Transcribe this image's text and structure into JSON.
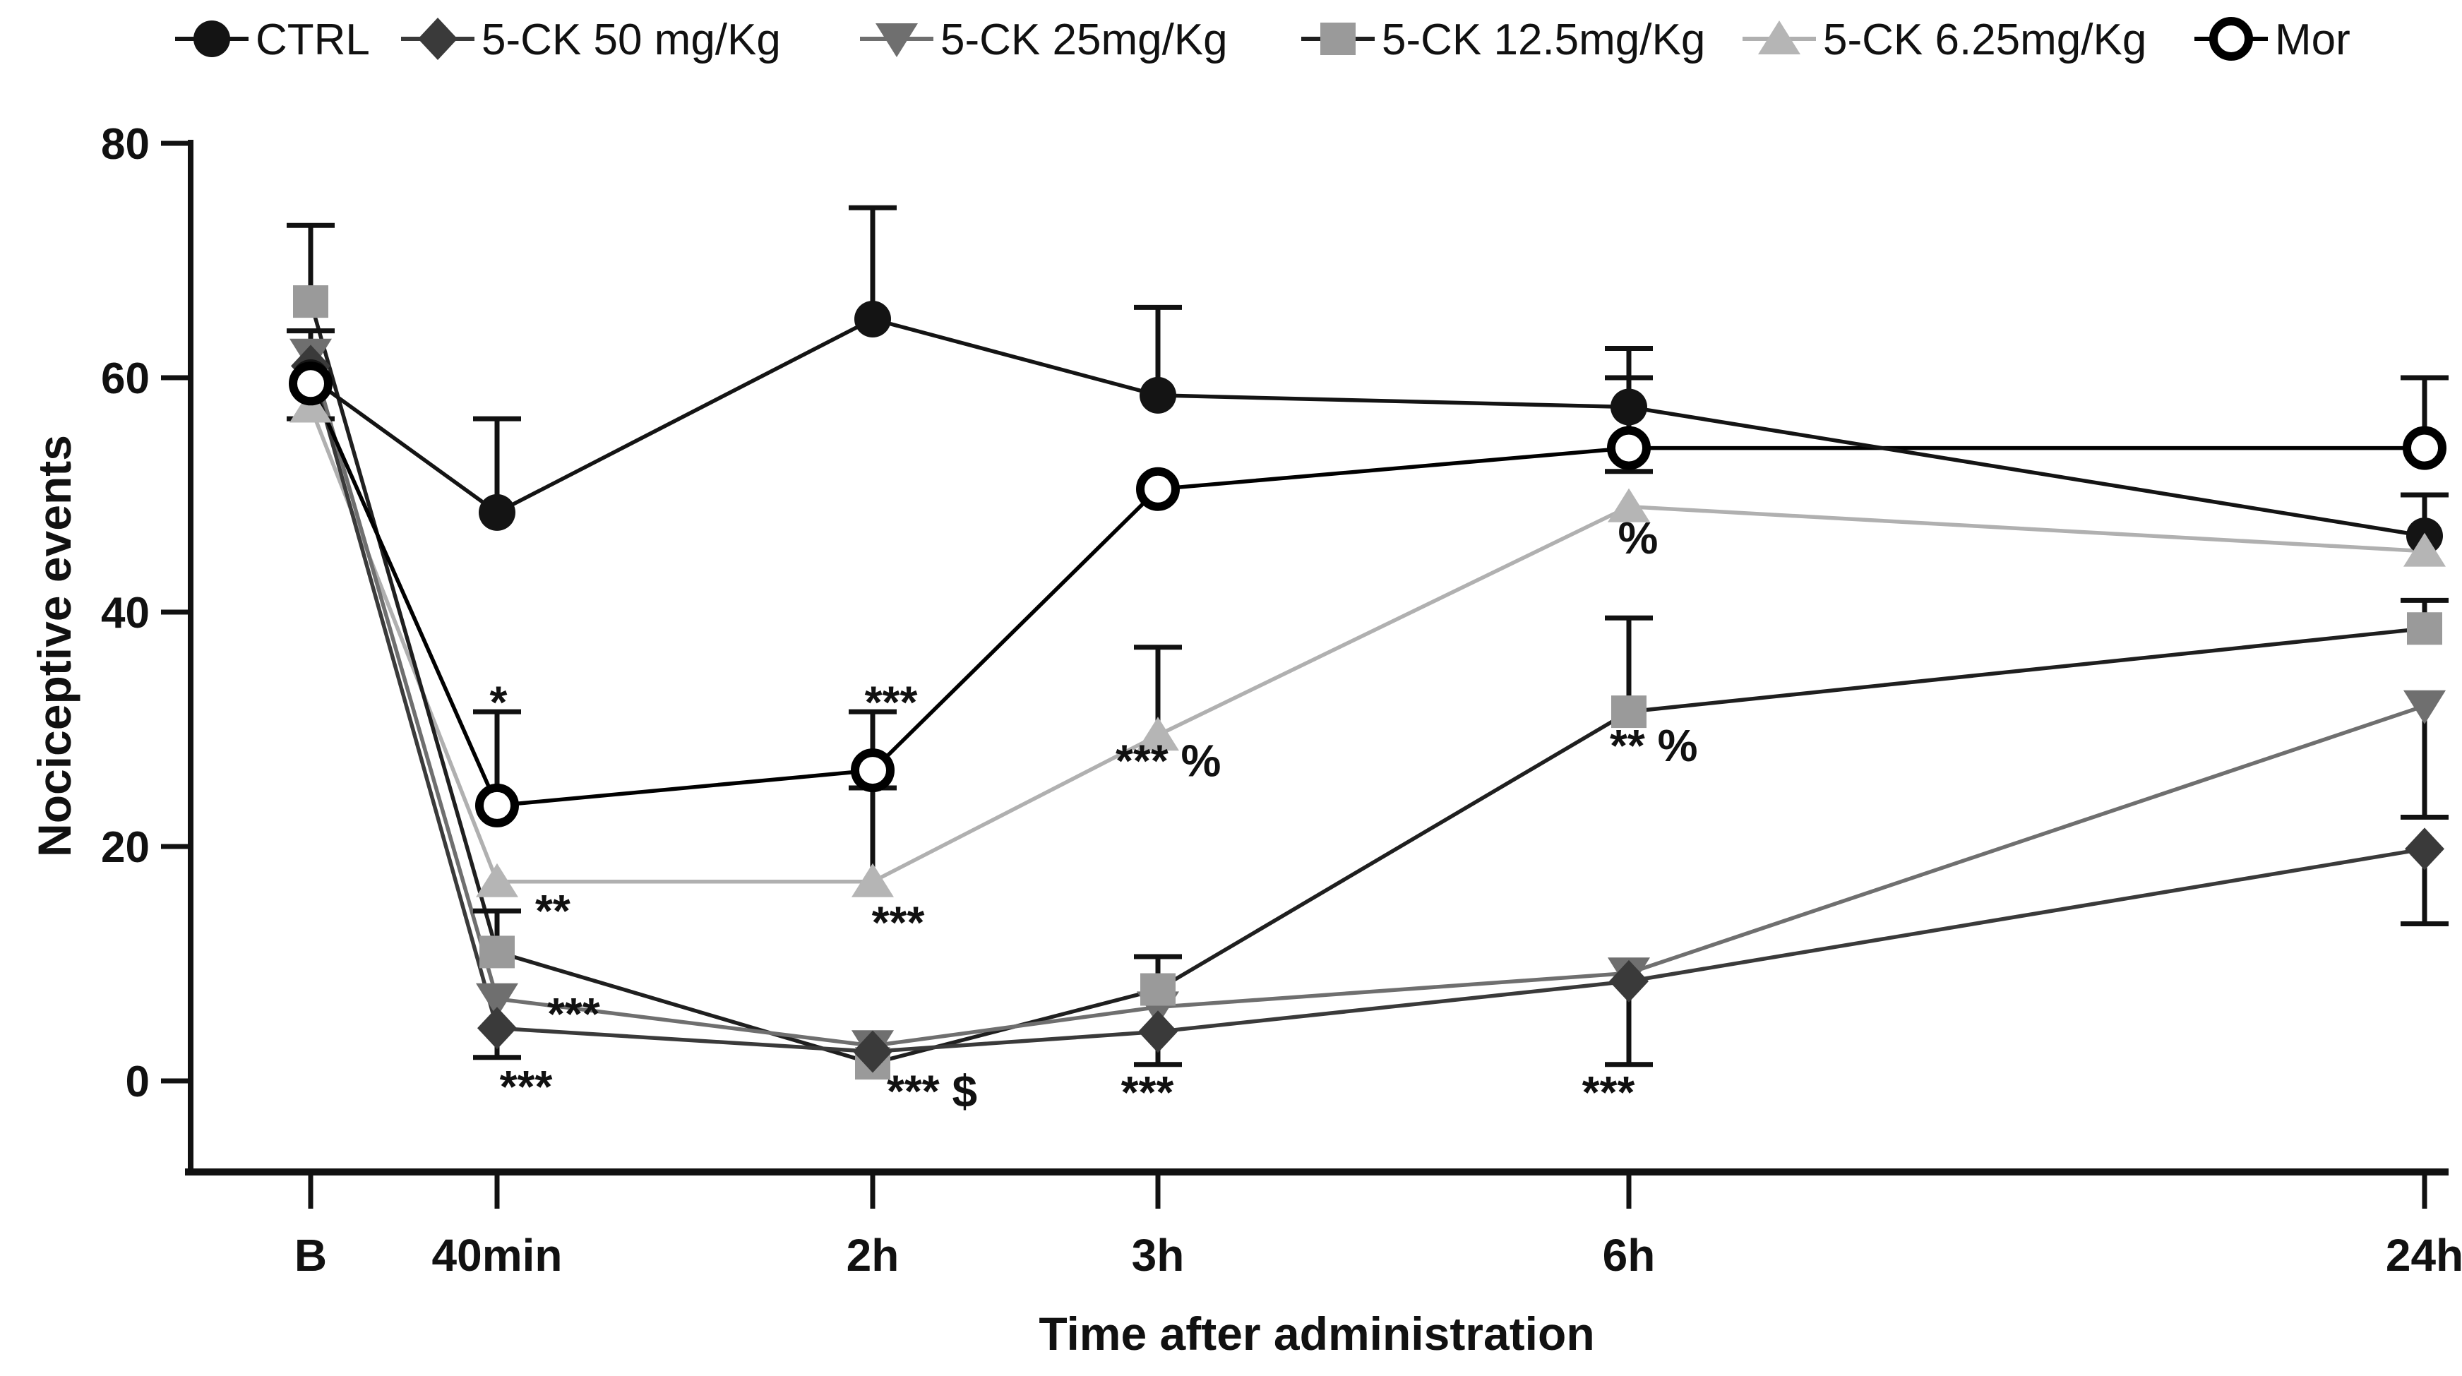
{
  "figure": {
    "ylabel": "Nociceptive events",
    "xlabel": "Time after administration"
  },
  "chart_data": {
    "type": "line",
    "title": "",
    "xlabel": "Time after administration",
    "ylabel": "Nociceptive events",
    "categories": [
      "B",
      "40min",
      "2h",
      "3h",
      "6h",
      "24h"
    ],
    "yticks": [
      0,
      20,
      40,
      60,
      80
    ],
    "ylim": [
      -8,
      80
    ],
    "grid": false,
    "legend_position": "top",
    "error_bar_color": "#111111",
    "series": [
      {
        "name": "CTRL",
        "marker": "circle",
        "marker_color": "#141414",
        "line_color": "#141414",
        "values": [
          60,
          48.5,
          65,
          58.5,
          57.5,
          46.5
        ],
        "err_up": [
          64,
          56.5,
          74.5,
          66,
          62.5,
          50
        ],
        "err_down": [
          56.5,
          null,
          null,
          null,
          null,
          null
        ]
      },
      {
        "name": "5-CK 50 mg/Kg",
        "marker": "diamond",
        "marker_color": "#3a3a3a",
        "line_color": "#3a3a3a",
        "values": [
          61,
          4.5,
          2.5,
          4.2,
          8.5,
          19.8
        ],
        "err_up": [
          null,
          null,
          null,
          null,
          null,
          null
        ],
        "err_down": [
          null,
          2,
          null,
          1.4,
          1.4,
          13.4
        ]
      },
      {
        "name": "5-CK 25mg/Kg",
        "marker": "triangle-down",
        "marker_color": "#6f6f6f",
        "line_color": "#6f6f6f",
        "values": [
          62,
          7,
          3,
          6.3,
          9.2,
          32
        ],
        "err_up": [
          null,
          null,
          null,
          null,
          null,
          null
        ],
        "err_down": [
          null,
          null,
          null,
          null,
          null,
          22.5
        ]
      },
      {
        "name": "5-CK 12.5mg/Kg",
        "marker": "square",
        "marker_color": "#9a9a9a",
        "line_color": "#1f1f1f",
        "values": [
          66.5,
          11,
          1.5,
          7.8,
          31.5,
          38.6
        ],
        "err_up": [
          73,
          14.5,
          null,
          10.6,
          39.5,
          41
        ],
        "err_down": [
          null,
          null,
          null,
          null,
          null,
          null
        ]
      },
      {
        "name": "5-CK 6.25mg/Kg",
        "marker": "triangle-up",
        "marker_color": "#b5b5b5",
        "line_color": "#b0b0b0",
        "values": [
          57.5,
          17,
          17,
          29.5,
          49,
          45.2
        ],
        "err_up": [
          null,
          null,
          25,
          37,
          null,
          null
        ],
        "err_down": [
          null,
          null,
          null,
          null,
          null,
          null
        ]
      },
      {
        "name": "Mor",
        "marker": "circle-open",
        "marker_color": "#000000",
        "line_color": "#000000",
        "values": [
          59.5,
          23.5,
          26.5,
          50.5,
          54,
          54
        ],
        "err_up": [
          null,
          31.5,
          31.5,
          null,
          60,
          60
        ],
        "err_down": [
          null,
          null,
          25,
          null,
          52,
          null
        ]
      }
    ],
    "annotations": [
      {
        "text": "*",
        "cat": 1,
        "v": 31.0,
        "dx": 2,
        "anchor": "middle"
      },
      {
        "text": "**",
        "cat": 1,
        "v": 13.2,
        "dx": 54,
        "anchor": "start"
      },
      {
        "text": "***",
        "cat": 1,
        "v": 4.4,
        "dx": 71,
        "anchor": "start"
      },
      {
        "text": "***",
        "cat": 1,
        "v": -1.8,
        "dx": 41,
        "anchor": "middle"
      },
      {
        "text": "***",
        "cat": 2,
        "v": 31.0,
        "dx": 26,
        "anchor": "middle"
      },
      {
        "text": "***",
        "cat": 2,
        "v": 12.2,
        "dx": 36,
        "anchor": "middle"
      },
      {
        "text": "*** $",
        "cat": 2,
        "v": -2.2,
        "dx": 84,
        "anchor": "middle"
      },
      {
        "text": "*** %",
        "cat": 3,
        "v": 26.0,
        "dx": -60,
        "anchor": "start"
      },
      {
        "text": "***",
        "cat": 3,
        "v": -2.3,
        "dx": -15,
        "anchor": "middle"
      },
      {
        "text": "%",
        "cat": 4,
        "v": 45.0,
        "dx": 13,
        "anchor": "middle"
      },
      {
        "text": "** %",
        "cat": 4,
        "v": 27.3,
        "dx": -27,
        "anchor": "start"
      },
      {
        "text": "***",
        "cat": 4,
        "v": -2.3,
        "dx": -29,
        "anchor": "middle"
      }
    ]
  }
}
